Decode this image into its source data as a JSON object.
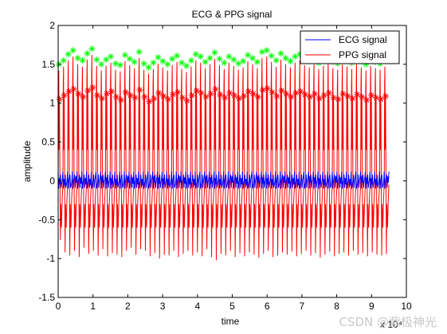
{
  "chart_data": {
    "type": "line",
    "title": "ECG & PPG signal",
    "xlabel": "time",
    "ylabel": "amplitude",
    "x_exponent_label": "x 10⁴",
    "xlim": [
      0,
      10
    ],
    "ylim": [
      -1.5,
      2
    ],
    "x_ticks": [
      "0",
      "1",
      "2",
      "3",
      "4",
      "5",
      "6",
      "7",
      "8",
      "9",
      "10"
    ],
    "y_ticks": [
      "-1.5",
      "-1",
      "-0.5",
      "0",
      "0.5",
      "1",
      "1.5",
      "2"
    ],
    "grid": false,
    "legend_position": "top-right",
    "x_range_of_data": [
      0,
      9.5
    ],
    "series": [
      {
        "name": "ECG signal",
        "color": "#0000ff",
        "style": "line",
        "description_values": {
          "baseline_min": -0.1,
          "baseline_max": 0.1,
          "spike_max": 0.2
        }
      },
      {
        "name": "PPG signal",
        "color": "#ff0000",
        "style": "line",
        "peak_values": [
          1.42,
          1.47,
          1.55,
          1.6,
          1.5,
          1.47,
          1.56,
          1.62,
          1.48,
          1.42,
          1.48,
          1.52,
          1.43,
          1.41,
          1.54,
          1.49,
          1.45,
          1.58,
          1.43,
          1.38,
          1.44,
          1.51,
          1.46,
          1.42,
          1.49,
          1.53,
          1.44,
          1.4,
          1.47,
          1.55,
          1.52,
          1.45,
          1.5,
          1.57,
          1.49,
          1.44,
          1.52,
          1.48,
          1.43,
          1.46,
          1.54,
          1.5,
          1.45,
          1.58,
          1.6,
          1.53,
          1.47,
          1.56,
          1.5,
          1.46,
          1.52,
          1.55,
          1.49,
          1.46,
          1.5,
          1.44,
          1.48,
          1.52,
          1.45,
          1.43,
          1.5,
          1.47,
          1.44,
          1.5,
          1.46,
          1.42,
          1.48,
          1.45,
          1.43,
          1.47
        ],
        "trough_values": [
          -0.76,
          -0.92,
          -0.96,
          -0.9,
          -0.98,
          -0.86,
          -0.94,
          -0.9,
          -0.96,
          -0.88,
          -0.97,
          -0.93,
          -0.95,
          -0.98,
          -0.9,
          -0.86,
          -0.95,
          -0.88,
          -0.9,
          -0.97,
          -0.93,
          -1.0,
          -0.95,
          -0.96,
          -0.9,
          -0.98,
          -0.94,
          -0.9,
          -0.96,
          -0.92,
          -0.97,
          -0.88,
          -0.98,
          -1.02,
          -0.94,
          -0.96,
          -0.9,
          -0.98,
          -0.93,
          -0.97,
          -0.92,
          -0.95,
          -0.99,
          -0.94,
          -0.9,
          -0.98,
          -0.96,
          -0.92,
          -0.95,
          -0.91,
          -0.97,
          -0.94,
          -0.9,
          -0.96,
          -0.93,
          -0.99,
          -0.95,
          -0.91,
          -0.97,
          -0.94,
          -0.92,
          -0.96,
          -0.9,
          -0.95,
          -0.93,
          -0.97,
          -0.92,
          -0.95,
          -0.96,
          -0.94
        ],
        "notch_values": [
          1.05,
          1.1,
          1.15,
          1.18,
          1.12,
          1.08,
          1.16,
          1.2,
          1.1,
          1.06,
          1.12,
          1.15,
          1.08,
          1.04,
          1.14,
          1.1,
          1.07,
          1.17,
          1.08,
          1.02,
          1.06,
          1.13,
          1.09,
          1.05,
          1.11,
          1.14,
          1.07,
          1.03,
          1.1,
          1.16,
          1.13,
          1.08,
          1.12,
          1.18,
          1.11,
          1.07,
          1.13,
          1.1,
          1.06,
          1.09,
          1.15,
          1.12,
          1.08,
          1.17,
          1.19,
          1.14,
          1.09,
          1.16,
          1.12,
          1.08,
          1.13,
          1.15,
          1.11,
          1.08,
          1.12,
          1.06,
          1.1,
          1.13,
          1.07,
          1.05,
          1.12,
          1.09,
          1.06,
          1.11,
          1.08,
          1.04,
          1.1,
          1.07,
          1.05,
          1.09
        ]
      }
    ],
    "markers": [
      {
        "name": "PPG peaks",
        "color": "#00ff00",
        "shape": "star",
        "on": "peak_values"
      },
      {
        "name": "PPG dicrotic notch",
        "color": "#ff0000",
        "shape": "star",
        "on": "notch_values"
      }
    ]
  },
  "legend": {
    "ecg_label": "ECG signal",
    "ppg_label": "PPG signal"
  },
  "watermark": {
    "text": "CSDN @紫极神光"
  }
}
